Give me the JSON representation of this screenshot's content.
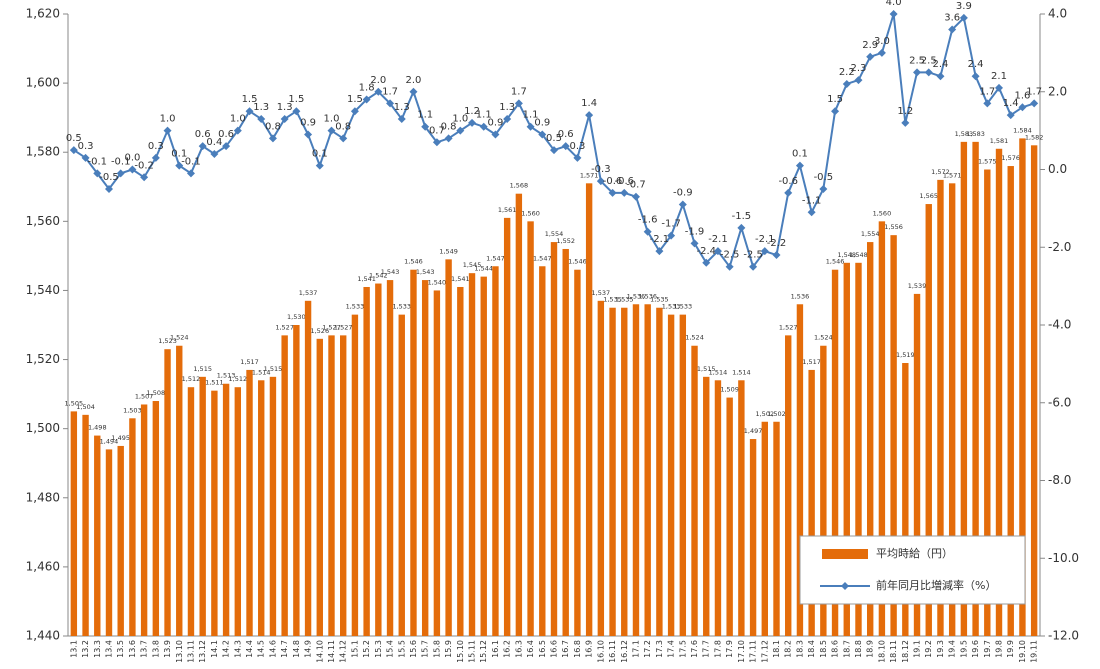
{
  "chart_data": {
    "type": "bar",
    "categories": [
      "13.1",
      "13.2",
      "13.3",
      "13.4",
      "13.5",
      "13.6",
      "13.7",
      "13.8",
      "13.9",
      "13.10",
      "13.11",
      "13.12",
      "14.1",
      "14.2",
      "14.3",
      "14.4",
      "14.5",
      "14.6",
      "14.7",
      "14.8",
      "14.9",
      "14.10",
      "14.11",
      "14.12",
      "15.1",
      "15.2",
      "15.3",
      "15.4",
      "15.5",
      "15.6",
      "15.7",
      "15.8",
      "15.9",
      "15.10",
      "15.11",
      "15.12",
      "16.1",
      "16.2",
      "16.3",
      "16.4",
      "16.5",
      "16.6",
      "16.7",
      "16.8",
      "16.9",
      "16.10",
      "16.11",
      "16.12",
      "17.1",
      "17.2",
      "17.3",
      "17.4",
      "17.5",
      "17.6",
      "17.7",
      "17.8",
      "17.9",
      "17.10",
      "17.11",
      "17.12",
      "18.1",
      "18.2",
      "18.3",
      "18.4",
      "18.5",
      "18.6",
      "18.7",
      "18.8",
      "18.9",
      "18.10",
      "18.11",
      "18.12",
      "19.1",
      "19.2",
      "19.3",
      "19.4",
      "19.5",
      "19.6",
      "19.7",
      "19.8",
      "19.9",
      "19.10",
      "19.11"
    ],
    "series": [
      {
        "name": "平均時給（円）",
        "type": "bar",
        "color": "#e46c0a",
        "values": [
          1505,
          1504,
          1498,
          1494,
          1495,
          1503,
          1507,
          1508,
          1523,
          1524,
          1512,
          1515,
          1511,
          1513,
          1512,
          1517,
          1514,
          1515,
          1527,
          1530,
          1537,
          1526,
          1527,
          1527,
          1533,
          1541,
          1542,
          1543,
          1533,
          1546,
          1543,
          1540,
          1549,
          1541,
          1545,
          1544,
          1547,
          1561,
          1568,
          1560,
          1547,
          1554,
          1552,
          1546,
          1571,
          1537,
          1535,
          1535,
          1536,
          1536,
          1535,
          1533,
          1533,
          1524,
          1515,
          1514,
          1509,
          1514,
          1497,
          1502,
          1502,
          1527,
          1536,
          1517,
          1524,
          1546,
          1548,
          1548,
          1554,
          1560,
          1556,
          1519,
          1539,
          1565,
          1572,
          1571,
          1583,
          1583,
          1575,
          1581,
          1576,
          1584,
          1582
        ],
        "value_labels": [
          "1,505",
          "1,504",
          "1,498",
          "1,494",
          "1,495",
          "1,503",
          "1,507",
          "1,508",
          "1,523",
          "1,524",
          "1,512",
          "1,515",
          "1,511",
          "1,513",
          "1,512",
          "1,517",
          "1,514",
          "1,515",
          "1,527",
          "1,530",
          "1,537",
          "1,526",
          "1,527",
          "1,527",
          "1,533",
          "1,541",
          "1,542",
          "1,543",
          "1,533",
          "1,546",
          "1,543",
          "1,540",
          "1,549",
          "1,541",
          "1,545",
          "1,544",
          "1,547",
          "1,561",
          "1,568",
          "1,560",
          "1,547",
          "1,554",
          "1,552",
          "1,546",
          "1,571",
          "1,537",
          "1,535",
          "1,535",
          "1,536",
          "1,536",
          "1,535",
          "1,533",
          "1,533",
          "1,524",
          "1,515",
          "1,514",
          "1,509",
          "1,514",
          "1,497",
          "1,502",
          "1,502",
          "1,527",
          "1,536",
          "1,517",
          "1,524",
          "1,546",
          "1,548",
          "1,548",
          "1,554",
          "1,560",
          "1,556",
          "1,519",
          "1,539",
          "1,565",
          "1,572",
          "1,571",
          "1,583",
          "1,583",
          "1,575",
          "1,581",
          "1,576",
          "1,584",
          "1,582"
        ]
      },
      {
        "name": "前年同月比増減率（%）",
        "type": "line",
        "axis": "y2",
        "color": "#4a7ebb",
        "values": [
          0.5,
          0.3,
          -0.1,
          -0.5,
          -0.1,
          0.0,
          -0.2,
          0.3,
          1.0,
          0.1,
          -0.1,
          0.6,
          0.4,
          0.6,
          1.0,
          1.5,
          1.3,
          0.8,
          1.3,
          1.5,
          0.9,
          0.1,
          1.0,
          0.8,
          1.5,
          1.8,
          2.0,
          1.7,
          1.3,
          2.0,
          1.1,
          0.7,
          0.8,
          1.0,
          1.2,
          1.1,
          0.9,
          1.3,
          1.7,
          1.1,
          0.9,
          0.5,
          0.6,
          0.3,
          1.4,
          -0.3,
          -0.6,
          -0.6,
          -0.7,
          -1.6,
          -2.1,
          -1.7,
          -0.9,
          -1.9,
          -2.4,
          -2.1,
          -2.5,
          -1.5,
          -2.5,
          -2.1,
          -2.2,
          -0.6,
          0.1,
          -1.1,
          -0.5,
          1.5,
          2.2,
          2.3,
          2.9,
          3.0,
          4.0,
          1.2,
          2.5,
          2.5,
          2.4,
          3.6,
          3.9,
          2.4,
          1.7,
          2.1,
          1.4,
          1.6,
          1.7
        ],
        "value_labels": [
          "0.5",
          "0.3",
          "-0.1",
          "-0.5",
          "-0.1",
          "0.0",
          "-0.2",
          "0.3",
          "1.0",
          "0.1",
          "-0.1",
          "0.6",
          "0.4",
          "0.6",
          "1.0",
          "1.5",
          "1.3",
          "0.8",
          "1.3",
          "1.5",
          "0.9",
          "0.1",
          "1.0",
          "0.8",
          "1.5",
          "1.8",
          "2.0",
          "1.7",
          "1.3",
          "2.0",
          "1.1",
          "0.7",
          "0.8",
          "1.0",
          "1.2",
          "1.1",
          "0.9",
          "1.3",
          "1.7",
          "1.1",
          "0.9",
          "0.5",
          "0.6",
          "0.3",
          "1.4",
          "-0.3",
          "-0.6",
          "-0.6",
          "-0.7",
          "-1.6",
          "-2.1",
          "-1.7",
          "-0.9",
          "-1.9",
          "-2.4",
          "-2.1",
          "-2.5",
          "-1.5",
          "-2.5",
          "-2.1",
          "-2.2",
          "-0.6",
          "0.1",
          "-1.1",
          "-0.5",
          "1.5",
          "2.2",
          "2.3",
          "2.9",
          "3.0",
          "4.0",
          "1.2",
          "2.5",
          "2.5",
          "2.4",
          "3.6",
          "3.9",
          "2.4",
          "1.7",
          "2.1",
          "1.4",
          "1.6",
          "1.7"
        ]
      }
    ],
    "ylim": [
      1440,
      1620
    ],
    "yticks": [
      {
        "value": 1440,
        "label": "1,440"
      },
      {
        "value": 1460,
        "label": "1,460"
      },
      {
        "value": 1480,
        "label": "1,480"
      },
      {
        "value": 1500,
        "label": "1,500"
      },
      {
        "value": 1520,
        "label": "1,520"
      },
      {
        "value": 1540,
        "label": "1,540"
      },
      {
        "value": 1560,
        "label": "1,560"
      },
      {
        "value": 1580,
        "label": "1,580"
      },
      {
        "value": 1600,
        "label": "1,600"
      },
      {
        "value": 1620,
        "label": "1,620"
      }
    ],
    "y2lim": [
      -12,
      4
    ],
    "y2ticks": [
      {
        "value": -12,
        "label": "-12.0"
      },
      {
        "value": -10,
        "label": "-10.0"
      },
      {
        "value": -8,
        "label": "-8.0"
      },
      {
        "value": -6,
        "label": "-6.0"
      },
      {
        "value": -4,
        "label": "-4.0"
      },
      {
        "value": -2,
        "label": "-2.0"
      },
      {
        "value": 0,
        "label": "0.0"
      },
      {
        "value": 2,
        "label": "2.0"
      },
      {
        "value": 4,
        "label": "4.0"
      }
    ],
    "legend": "lower right"
  }
}
